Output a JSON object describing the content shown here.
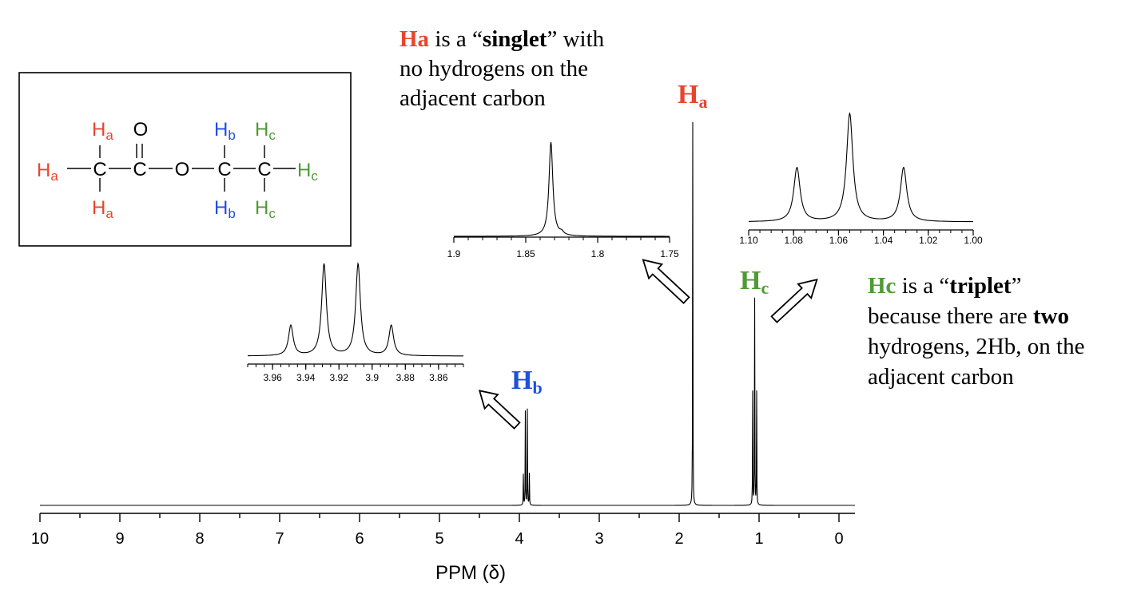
{
  "colors": {
    "ha": "#e8452c",
    "hb": "#1f4fe0",
    "hc": "#4f9a35",
    "ink": "#000000"
  },
  "molecule": {
    "oxygen": "O",
    "carbon": "C",
    "h": "H",
    "sub_a": "a",
    "sub_b": "b",
    "sub_c": "c"
  },
  "annotations": {
    "ha_note": {
      "tag": "Ha",
      "t1": " is a “",
      "bold": "singlet",
      "t2": "” with",
      "line2": "no hydrogens on the",
      "line3": "adjacent carbon"
    },
    "hc_note": {
      "tag": "Hc",
      "t1": " is a “",
      "bold": "triplet",
      "t2": "”",
      "line2a": "because there are ",
      "line2b": "two",
      "line3": "hydrogens, 2Hb, on the",
      "line4": "adjacent carbon"
    }
  },
  "peak_labels": {
    "ha": {
      "main": "H",
      "sub": "a"
    },
    "hb": {
      "main": "H",
      "sub": "b"
    },
    "hc": {
      "main": "H",
      "sub": "c"
    }
  },
  "chart_data": [
    {
      "type": "line",
      "name": "main-spectrum",
      "xlabel": "PPM (δ)",
      "xlim": [
        10,
        -0.2
      ],
      "xticks": [
        "10",
        "9",
        "8",
        "7",
        "6",
        "5",
        "4",
        "3",
        "2",
        "1",
        "0"
      ],
      "peaks": [
        {
          "ppm": 3.95,
          "h": 0.32
        },
        {
          "ppm": 3.925,
          "h": 0.98
        },
        {
          "ppm": 3.9,
          "h": 1.0
        },
        {
          "ppm": 3.875,
          "h": 0.33
        },
        {
          "ppm": 1.83,
          "h": 4.0
        },
        {
          "ppm": 1.08,
          "h": 1.18
        },
        {
          "ppm": 1.055,
          "h": 2.15
        },
        {
          "ppm": 1.03,
          "h": 1.18
        }
      ]
    },
    {
      "type": "line",
      "name": "inset-hb-quartet",
      "xlim": [
        3.975,
        3.845
      ],
      "xticks": [
        "3.96",
        "3.94",
        "3.92",
        "3.9",
        "3.88",
        "3.86"
      ],
      "peaks": [
        {
          "ppm": 3.949,
          "h": 0.33
        },
        {
          "ppm": 3.929,
          "h": 1.0
        },
        {
          "ppm": 3.9085,
          "h": 1.0
        },
        {
          "ppm": 3.8885,
          "h": 0.33
        }
      ]
    },
    {
      "type": "line",
      "name": "inset-ha-singlet",
      "xlim": [
        1.9,
        1.75
      ],
      "xticks": [
        "1.9",
        "1.85",
        "1.8",
        "1.75"
      ],
      "peaks": [
        {
          "ppm": 1.8325,
          "h": 1.0
        },
        {
          "ppm": 1.825,
          "h": 0.03
        }
      ]
    },
    {
      "type": "line",
      "name": "inset-hc-triplet",
      "xlim": [
        1.1,
        1.0
      ],
      "xticks": [
        "1.10",
        "1.08",
        "1.06",
        "1.04",
        "1.02",
        "1.00"
      ],
      "peaks": [
        {
          "ppm": 1.0785,
          "h": 0.5
        },
        {
          "ppm": 1.055,
          "h": 1.0
        },
        {
          "ppm": 1.031,
          "h": 0.5
        }
      ]
    }
  ]
}
